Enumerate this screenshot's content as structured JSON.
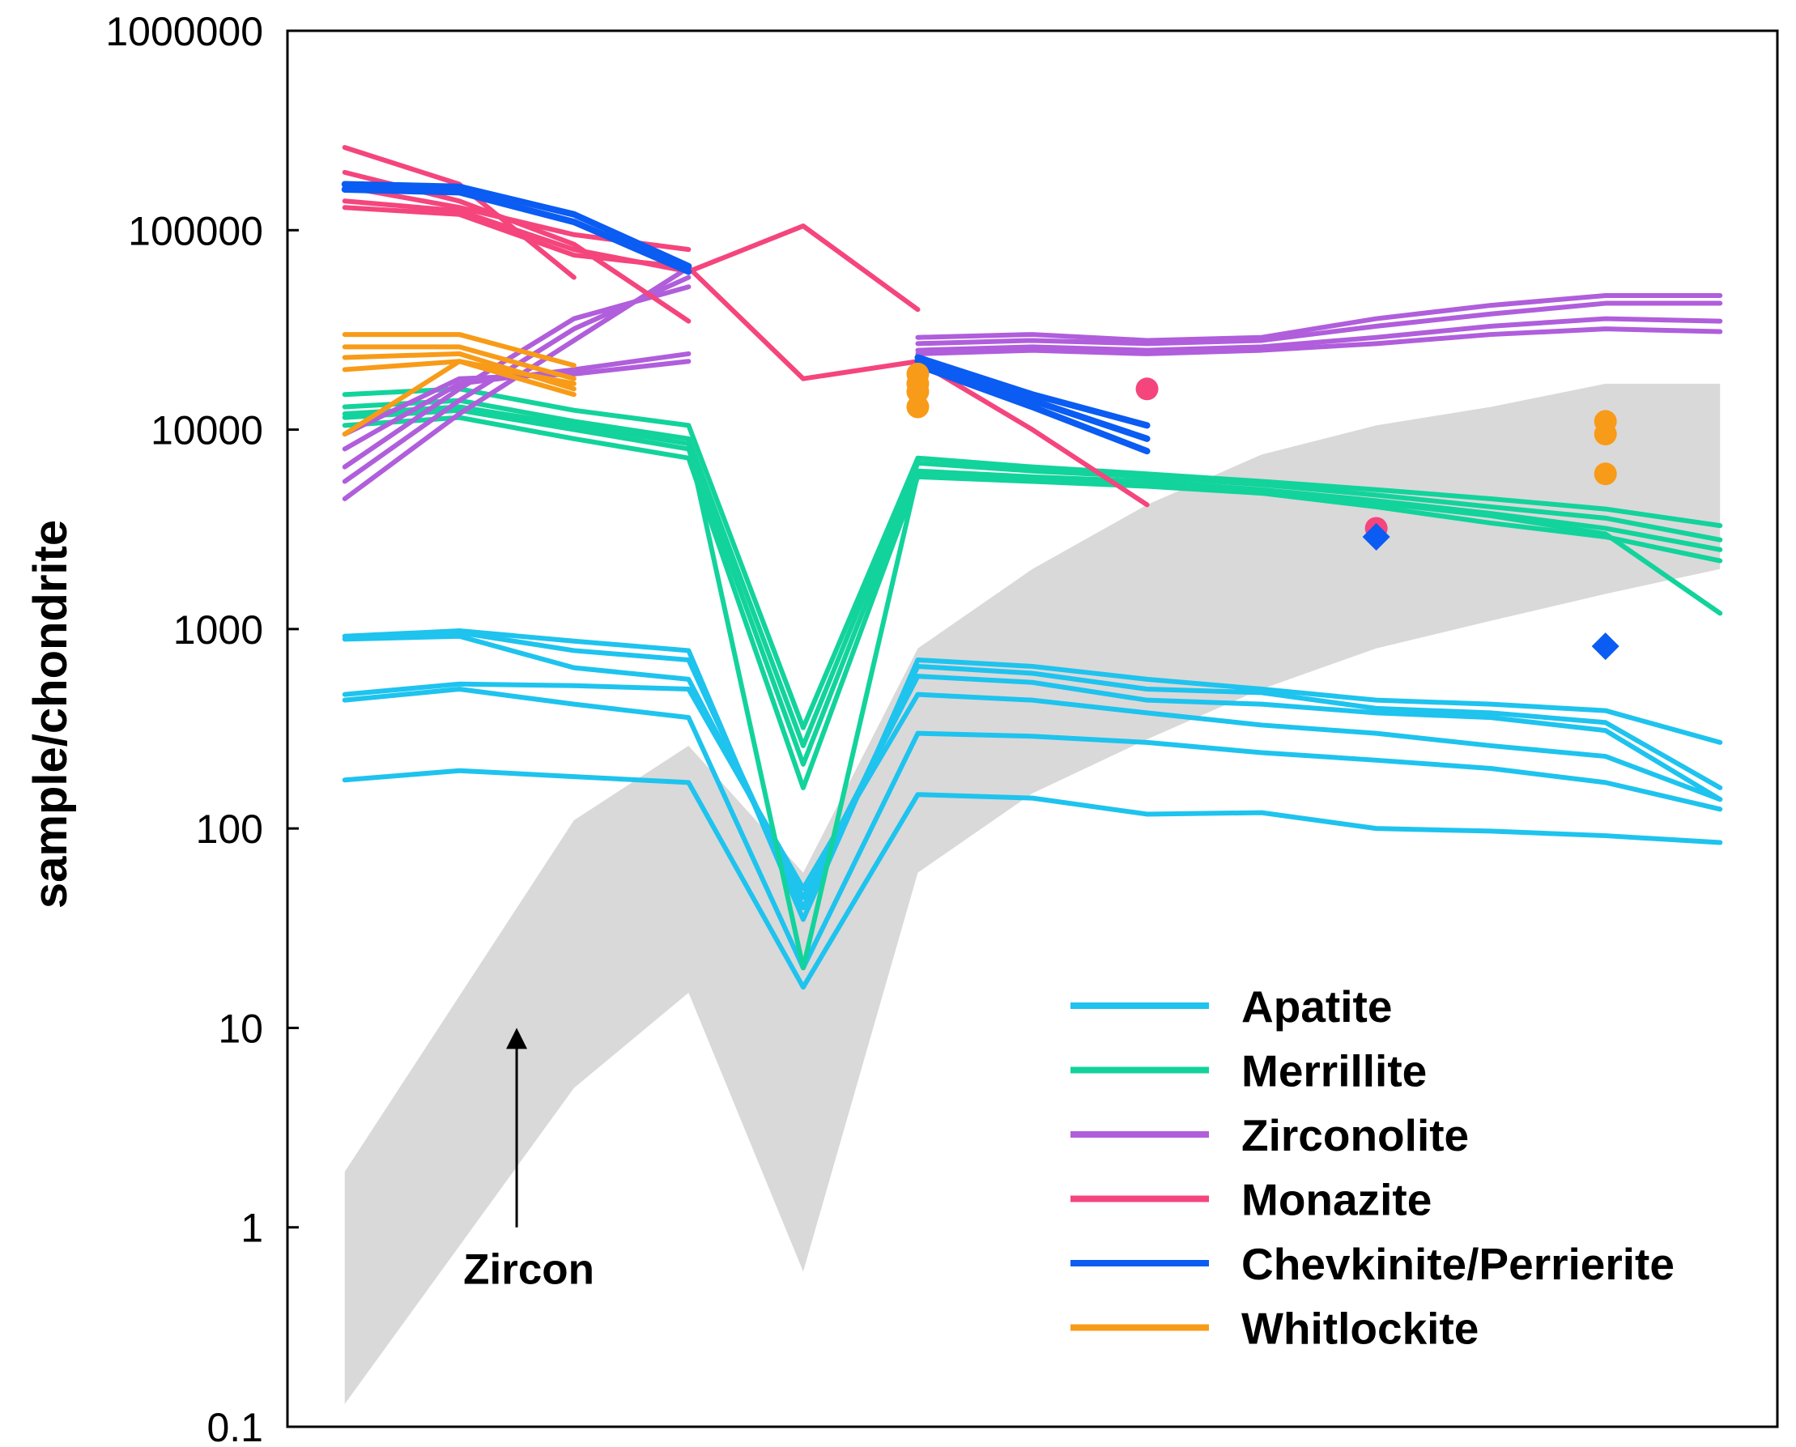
{
  "chart_data": {
    "type": "line",
    "title": "",
    "xlabel": "",
    "ylabel": "sample/chondrite",
    "yscale": "log",
    "ylim": [
      0.1,
      1000000
    ],
    "xlim": [
      0.5,
      13.5
    ],
    "y_tick_labels": [
      "0.1",
      "1",
      "10",
      "100",
      "1000",
      "10000",
      "100000",
      "1000000"
    ],
    "y_tick_values": [
      0.1,
      1,
      10,
      100,
      1000,
      10000,
      100000,
      1000000
    ],
    "legend_position": "bottom-right",
    "legend": [
      {
        "name": "Apatite",
        "color": "#1EC3EE"
      },
      {
        "name": "Merrillite",
        "color": "#12D39B"
      },
      {
        "name": "Zirconolite",
        "color": "#B05EDC"
      },
      {
        "name": "Monazite",
        "color": "#F5457D"
      },
      {
        "name": "Chevkinite/Perrierite",
        "color": "#0A5CF2"
      },
      {
        "name": "Whitlockite",
        "color": "#F89B18"
      }
    ],
    "series": [
      {
        "group": "Zircon",
        "type": "band",
        "color": "#D9D9D9",
        "x": [
          1,
          3,
          4,
          5,
          6,
          7,
          8,
          9,
          10,
          11,
          12,
          13
        ],
        "upper": [
          1.9,
          110,
          260,
          60,
          800,
          2000,
          4200,
          7500,
          10500,
          13000,
          17000,
          17000
        ],
        "lower": [
          0.13,
          5,
          15,
          0.6,
          60,
          150,
          280,
          500,
          800,
          1100,
          1500,
          2000
        ]
      },
      {
        "group": "Apatite",
        "x": [
          1,
          2,
          3,
          4,
          5,
          6,
          7,
          8,
          9,
          10,
          11,
          12,
          13
        ],
        "values": [
          920,
          980,
          870,
          780,
          35,
          700,
          650,
          560,
          500,
          440,
          420,
          390,
          270
        ]
      },
      {
        "group": "Apatite",
        "x": [
          1,
          2,
          3,
          4,
          5,
          6,
          7,
          8,
          9,
          10,
          11,
          12,
          13
        ],
        "values": [
          920,
          960,
          780,
          700,
          40,
          650,
          600,
          500,
          480,
          400,
          380,
          340,
          160
        ]
      },
      {
        "group": "Apatite",
        "x": [
          1,
          2,
          3,
          4,
          5,
          6,
          7,
          8,
          9,
          10,
          11,
          12,
          13
        ],
        "values": [
          890,
          920,
          640,
          560,
          45,
          580,
          540,
          440,
          420,
          380,
          360,
          310,
          140
        ]
      },
      {
        "group": "Apatite",
        "x": [
          1,
          2,
          3,
          4,
          5,
          6,
          7,
          8,
          9,
          10,
          11,
          12,
          13
        ],
        "values": [
          470,
          530,
          520,
          500,
          50,
          470,
          440,
          380,
          330,
          300,
          260,
          230,
          140
        ]
      },
      {
        "group": "Apatite",
        "x": [
          1,
          2,
          3,
          4,
          5,
          6,
          7,
          8,
          9,
          10,
          11,
          12,
          13
        ],
        "values": [
          440,
          500,
          420,
          360,
          20,
          300,
          290,
          270,
          240,
          220,
          200,
          170,
          125
        ]
      },
      {
        "group": "Apatite",
        "x": [
          1,
          2,
          3,
          4,
          5,
          6,
          7,
          8,
          9,
          10,
          11,
          12,
          13
        ],
        "values": [
          175,
          195,
          182,
          170,
          16,
          148,
          142,
          118,
          120,
          100,
          97,
          92,
          85
        ]
      },
      {
        "group": "Merrillite",
        "x": [
          1,
          2,
          3,
          4,
          5,
          6,
          7,
          8,
          9,
          10,
          11,
          12,
          13
        ],
        "values": [
          15000,
          16000,
          12500,
          10500,
          320,
          7200,
          6500,
          6000,
          5500,
          5000,
          4500,
          4000,
          3300
        ]
      },
      {
        "group": "Merrillite",
        "x": [
          1,
          2,
          3,
          4,
          5,
          6,
          7,
          8,
          9,
          10,
          11,
          12,
          13
        ],
        "values": [
          13000,
          14000,
          11000,
          9000,
          260,
          6800,
          6200,
          5800,
          5300,
          4700,
          4100,
          3600,
          2800
        ]
      },
      {
        "group": "Merrillite",
        "x": [
          1,
          2,
          3,
          4,
          5,
          6,
          7,
          8,
          9,
          10,
          11,
          12,
          13
        ],
        "values": [
          11500,
          12500,
          10000,
          8000,
          210,
          6200,
          5800,
          5500,
          5000,
          4400,
          3800,
          3200,
          2500
        ]
      },
      {
        "group": "Merrillite",
        "x": [
          1,
          2,
          3,
          4,
          5,
          6,
          7,
          8,
          9,
          10,
          11,
          12,
          13
        ],
        "values": [
          10500,
          11500,
          9000,
          7200,
          160,
          5800,
          5500,
          5200,
          4800,
          4100,
          3400,
          2900,
          2200
        ]
      },
      {
        "group": "Merrillite",
        "x": [
          1,
          2,
          3,
          4,
          5,
          6,
          7,
          8,
          9,
          10,
          11,
          12,
          13
        ],
        "values": [
          12000,
          13000,
          10500,
          8500,
          20,
          6000,
          5600,
          5300,
          4900,
          4300,
          3700,
          3000,
          1200
        ]
      },
      {
        "group": "Zirconolite",
        "x": [
          1,
          2,
          3,
          4
        ],
        "values": [
          4500,
          12000,
          28000,
          65000
        ]
      },
      {
        "group": "Zirconolite",
        "x": [
          1,
          2,
          3,
          4
        ],
        "values": [
          5500,
          14000,
          32000,
          58000
        ]
      },
      {
        "group": "Zirconolite",
        "x": [
          1,
          2,
          3,
          4
        ],
        "values": [
          6500,
          16000,
          36000,
          52000
        ]
      },
      {
        "group": "Zirconolite",
        "x": [
          1,
          2,
          3,
          4
        ],
        "values": [
          8000,
          17000,
          20000,
          24000
        ]
      },
      {
        "group": "Zirconolite",
        "x": [
          1,
          2,
          3,
          4
        ],
        "values": [
          9500,
          18000,
          19000,
          22000
        ]
      },
      {
        "group": "Zirconolite",
        "x": [
          6,
          7,
          8,
          9,
          10,
          11,
          12,
          13
        ],
        "values": [
          29000,
          30000,
          28000,
          29000,
          36000,
          42000,
          47000,
          47000
        ]
      },
      {
        "group": "Zirconolite",
        "x": [
          6,
          7,
          8,
          9,
          10,
          11,
          12,
          13
        ],
        "values": [
          27000,
          28000,
          27000,
          28000,
          33000,
          38000,
          43000,
          43000
        ]
      },
      {
        "group": "Zirconolite",
        "x": [
          6,
          7,
          8,
          9,
          10,
          11,
          12,
          13
        ],
        "values": [
          25000,
          26000,
          25000,
          26000,
          29000,
          33000,
          36000,
          35000
        ]
      },
      {
        "group": "Zirconolite",
        "x": [
          6,
          7,
          8,
          9,
          10,
          11,
          12,
          13
        ],
        "values": [
          24000,
          25000,
          24000,
          25000,
          27000,
          30000,
          32000,
          31000
        ]
      },
      {
        "group": "Monazite",
        "x": [
          1,
          2,
          3
        ],
        "values": [
          260000,
          170000,
          58000
        ]
      },
      {
        "group": "Monazite",
        "x": [
          1,
          2,
          3,
          4
        ],
        "values": [
          195000,
          140000,
          85000,
          35000
        ]
      },
      {
        "group": "Monazite",
        "x": [
          1,
          2,
          3,
          4
        ],
        "values": [
          165000,
          130000,
          95000,
          80000
        ]
      },
      {
        "group": "Monazite",
        "x": [
          1,
          2,
          3,
          4,
          5,
          6
        ],
        "values": [
          140000,
          125000,
          80000,
          62000,
          105000,
          40000
        ]
      },
      {
        "group": "Monazite",
        "x": [
          1,
          2,
          3,
          4,
          5,
          6,
          7,
          8
        ],
        "values": [
          130000,
          120000,
          75000,
          65000,
          18000,
          22000,
          10000,
          4200
        ]
      },
      {
        "group": "Chevkinite/Perrierite",
        "x": [
          1,
          2,
          3,
          4
        ],
        "values": [
          170000,
          165000,
          120000,
          66000
        ]
      },
      {
        "group": "Chevkinite/Perrierite",
        "x": [
          1,
          2,
          3,
          4
        ],
        "values": [
          160000,
          155000,
          110000,
          62000
        ]
      },
      {
        "group": "Chevkinite/Perrierite",
        "x": [
          6,
          7,
          8
        ],
        "values": [
          23000,
          15000,
          10500
        ]
      },
      {
        "group": "Chevkinite/Perrierite",
        "x": [
          6,
          7,
          8
        ],
        "values": [
          22000,
          14000,
          9000
        ]
      },
      {
        "group": "Chevkinite/Perrierite",
        "x": [
          6,
          7,
          8
        ],
        "values": [
          21000,
          13000,
          7800
        ]
      },
      {
        "group": "Whitlockite",
        "x": [
          1,
          2,
          3
        ],
        "values": [
          30000,
          30000,
          21000
        ]
      },
      {
        "group": "Whitlockite",
        "x": [
          1,
          2,
          3
        ],
        "values": [
          26000,
          26000,
          18000
        ]
      },
      {
        "group": "Whitlockite",
        "x": [
          1,
          2,
          3
        ],
        "values": [
          23000,
          24000,
          16000
        ]
      },
      {
        "group": "Whitlockite",
        "x": [
          1,
          2,
          3
        ],
        "values": [
          20000,
          22000,
          15000
        ]
      },
      {
        "group": "Whitlockite",
        "x": [
          1,
          2,
          3
        ],
        "values": [
          9500,
          22000,
          17000
        ]
      }
    ],
    "points": [
      {
        "group": "Whitlockite",
        "marker": "circle",
        "x": 6,
        "y": 19000
      },
      {
        "group": "Whitlockite",
        "marker": "circle",
        "x": 6,
        "y": 17000
      },
      {
        "group": "Whitlockite",
        "marker": "circle",
        "x": 6,
        "y": 15500
      },
      {
        "group": "Whitlockite",
        "marker": "circle",
        "x": 6,
        "y": 13000
      },
      {
        "group": "Whitlockite",
        "marker": "circle",
        "x": 12,
        "y": 11000
      },
      {
        "group": "Whitlockite",
        "marker": "circle",
        "x": 12,
        "y": 9500
      },
      {
        "group": "Whitlockite",
        "marker": "circle",
        "x": 12,
        "y": 6000
      },
      {
        "group": "Monazite",
        "marker": "circle",
        "x": 8,
        "y": 16000
      },
      {
        "group": "Monazite",
        "marker": "circle",
        "x": 10,
        "y": 3200
      },
      {
        "group": "Chevkinite/Perrierite",
        "marker": "diamond",
        "x": 10,
        "y": 2900
      },
      {
        "group": "Chevkinite/Perrierite",
        "marker": "diamond",
        "x": 12,
        "y": 820
      }
    ],
    "annotations": [
      {
        "text": "Zircon",
        "arrow": true,
        "x": 2.5,
        "y_tail": 1,
        "y_head": 10
      }
    ]
  }
}
